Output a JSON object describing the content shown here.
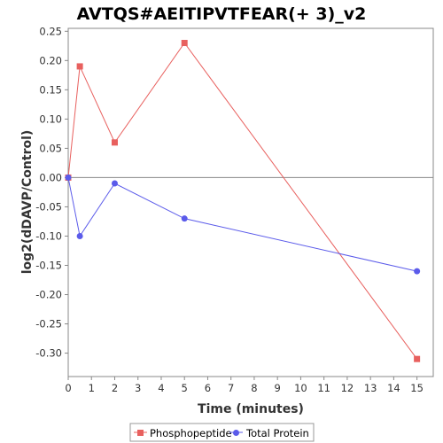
{
  "chart_data": {
    "type": "line",
    "title": "AVTQS#AEITIPVTFEAR(+ 3)_v2",
    "xlabel": "Time (minutes)",
    "ylabel": "log2(dDAVP/Control)",
    "xlim": [
      0,
      15.7
    ],
    "ylim": [
      -0.34,
      0.255
    ],
    "xticks": [
      "0",
      "1",
      "2",
      "3",
      "4",
      "5",
      "6",
      "7",
      "8",
      "9",
      "10",
      "11",
      "12",
      "13",
      "14",
      "15"
    ],
    "yticks": [
      "0.25",
      "0.20",
      "0.15",
      "0.10",
      "0.05",
      "0.00",
      "-0.05",
      "-0.10",
      "-0.15",
      "-0.20",
      "-0.25",
      "-0.30"
    ],
    "grid": false,
    "legend_position": "bottom",
    "series": [
      {
        "name": "Phosphopeptide",
        "color": "#e8605e",
        "marker": "square",
        "x": [
          0,
          0.5,
          2,
          5,
          15
        ],
        "y": [
          0.0,
          0.19,
          0.06,
          0.23,
          -0.31
        ]
      },
      {
        "name": "Total Protein",
        "color": "#5b5bea",
        "marker": "circle",
        "x": [
          0,
          0.5,
          2,
          5,
          15
        ],
        "y": [
          0.0,
          -0.1,
          -0.01,
          -0.07,
          -0.16
        ]
      }
    ]
  }
}
